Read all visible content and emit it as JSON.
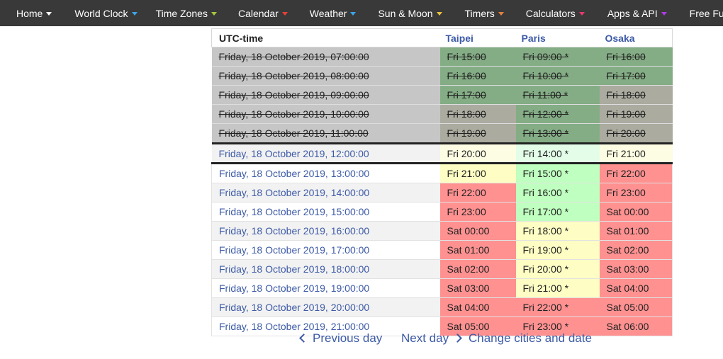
{
  "nav": {
    "items": [
      {
        "label": "Home",
        "arrow_color": "#ffffff"
      },
      {
        "label": "World Clock",
        "arrow_color": "#3aa6e8"
      },
      {
        "label": "Time Zones",
        "arrow_color": "#a6c93a"
      },
      {
        "label": "Calendar",
        "arrow_color": "#e8413a"
      },
      {
        "label": "Weather",
        "arrow_color": "#3aa6e8"
      },
      {
        "label": "Sun & Moon",
        "arrow_color": "#e8c43a"
      },
      {
        "label": "Timers",
        "arrow_color": "#e8813a"
      },
      {
        "label": "Calculators",
        "arrow_color": "#e83a6e"
      },
      {
        "label": "Apps & API",
        "arrow_color": "#b23ae8"
      },
      {
        "label": "Free Fun",
        "arrow_color": "#ffffff"
      }
    ]
  },
  "table": {
    "headers": {
      "utc": "UTC-time",
      "city1": "Taipei",
      "city2": "Paris",
      "city3": "Osaka"
    },
    "colors": {
      "dark_green": "#84ad85",
      "olive": "#ababa0",
      "light_green": "#bfffbf",
      "light_yellow": "#fdfdc4",
      "red": "#ff9191",
      "current_yellow": "#fdfde3",
      "current_green": "#e3fde8"
    },
    "rows": [
      {
        "kind": "past",
        "utc": "Friday, 18 October 2019, 07:00:00",
        "c1": "Fri 15:00",
        "c2": "Fri 09:00 *",
        "c3": "Fri 16:00",
        "b1": "#84ad85",
        "b2": "#84ad85",
        "b3": "#84ad85"
      },
      {
        "kind": "past",
        "utc": "Friday, 18 October 2019, 08:00:00",
        "c1": "Fri 16:00",
        "c2": "Fri 10:00 *",
        "c3": "Fri 17:00",
        "b1": "#84ad85",
        "b2": "#84ad85",
        "b3": "#84ad85"
      },
      {
        "kind": "past",
        "utc": "Friday, 18 October 2019, 09:00:00",
        "c1": "Fri 17:00",
        "c2": "Fri 11:00 *",
        "c3": "Fri 18:00",
        "b1": "#84ad85",
        "b2": "#84ad85",
        "b3": "#ababa0"
      },
      {
        "kind": "past",
        "utc": "Friday, 18 October 2019, 10:00:00",
        "c1": "Fri 18:00",
        "c2": "Fri 12:00 *",
        "c3": "Fri 19:00",
        "b1": "#ababa0",
        "b2": "#84ad85",
        "b3": "#ababa0"
      },
      {
        "kind": "past",
        "utc": "Friday, 18 October 2019, 11:00:00",
        "c1": "Fri 19:00",
        "c2": "Fri 13:00 *",
        "c3": "Fri 20:00",
        "b1": "#ababa0",
        "b2": "#84ad85",
        "b3": "#ababa0"
      },
      {
        "kind": "current",
        "utc": "Friday, 18 October 2019, 12:00:00",
        "c1": "Fri 20:00",
        "c2": "Fri 14:00 *",
        "c3": "Fri 21:00",
        "b1": "#fdfde3",
        "b2": "#e3fde8",
        "b3": "#fdfde3"
      },
      {
        "kind": "row",
        "shade": "w",
        "utc": "Friday, 18 October 2019, 13:00:00",
        "c1": "Fri 21:00",
        "c2": "Fri 15:00 *",
        "c3": "Fri 22:00",
        "b1": "#fdfdc4",
        "b2": "#bfffbf",
        "b3": "#ff9191"
      },
      {
        "kind": "row",
        "shade": "g",
        "utc": "Friday, 18 October 2019, 14:00:00",
        "c1": "Fri 22:00",
        "c2": "Fri 16:00 *",
        "c3": "Fri 23:00",
        "b1": "#ff9191",
        "b2": "#bfffbf",
        "b3": "#ff9191"
      },
      {
        "kind": "row",
        "shade": "w",
        "utc": "Friday, 18 October 2019, 15:00:00",
        "c1": "Fri 23:00",
        "c2": "Fri 17:00 *",
        "c3": "Sat 00:00",
        "b1": "#ff9191",
        "b2": "#bfffbf",
        "b3": "#ff9191"
      },
      {
        "kind": "row",
        "shade": "g",
        "utc": "Friday, 18 October 2019, 16:00:00",
        "c1": "Sat 00:00",
        "c2": "Fri 18:00 *",
        "c3": "Sat 01:00",
        "b1": "#ff9191",
        "b2": "#fdfdc4",
        "b3": "#ff9191"
      },
      {
        "kind": "row",
        "shade": "w",
        "utc": "Friday, 18 October 2019, 17:00:00",
        "c1": "Sat 01:00",
        "c2": "Fri 19:00 *",
        "c3": "Sat 02:00",
        "b1": "#ff9191",
        "b2": "#fdfdc4",
        "b3": "#ff9191"
      },
      {
        "kind": "row",
        "shade": "g",
        "utc": "Friday, 18 October 2019, 18:00:00",
        "c1": "Sat 02:00",
        "c2": "Fri 20:00 *",
        "c3": "Sat 03:00",
        "b1": "#ff9191",
        "b2": "#fdfdc4",
        "b3": "#ff9191"
      },
      {
        "kind": "row",
        "shade": "w",
        "utc": "Friday, 18 October 2019, 19:00:00",
        "c1": "Sat 03:00",
        "c2": "Fri 21:00 *",
        "c3": "Sat 04:00",
        "b1": "#ff9191",
        "b2": "#fdfdc4",
        "b3": "#ff9191"
      },
      {
        "kind": "row",
        "shade": "g",
        "utc": "Friday, 18 October 2019, 20:00:00",
        "c1": "Sat 04:00",
        "c2": "Fri 22:00 *",
        "c3": "Sat 05:00",
        "b1": "#ff9191",
        "b2": "#ff9191",
        "b3": "#ff9191"
      },
      {
        "kind": "row",
        "shade": "w",
        "utc": "Friday, 18 October 2019, 21:00:00",
        "c1": "Sat 05:00",
        "c2": "Fri 23:00 *",
        "c3": "Sat 06:00",
        "b1": "#ff9191",
        "b2": "#ff9191",
        "b3": "#ff9191"
      }
    ]
  },
  "bottom": {
    "prev": "Previous day",
    "next": "Next day",
    "change": "Change cities and date"
  }
}
